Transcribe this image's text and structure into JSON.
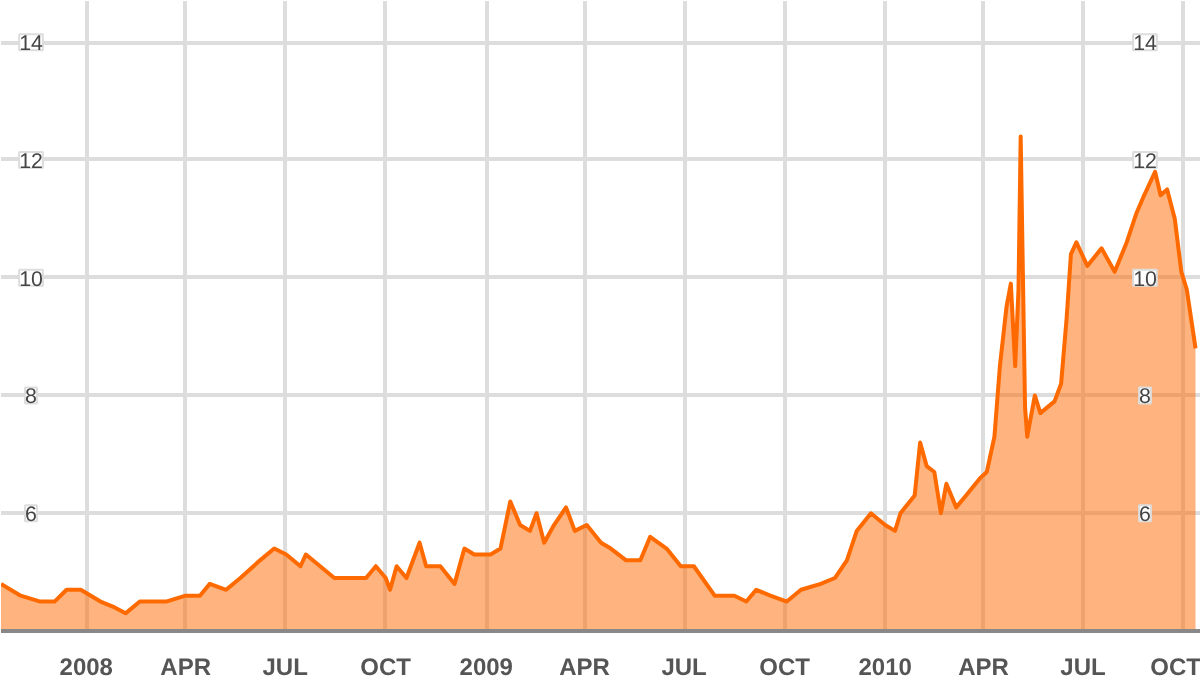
{
  "chart_data": {
    "type": "area",
    "grid": true,
    "xlim": [
      "2007-10-15",
      "2010-10-17"
    ],
    "ylim": [
      4,
      14.7
    ],
    "xticks": [
      {
        "value": "2008-01-01",
        "label": "2008"
      },
      {
        "value": "2008-04-01",
        "label": "APR"
      },
      {
        "value": "2008-07-01",
        "label": "JUL"
      },
      {
        "value": "2008-10-01",
        "label": "OCT"
      },
      {
        "value": "2009-01-01",
        "label": "2009"
      },
      {
        "value": "2009-04-01",
        "label": "APR"
      },
      {
        "value": "2009-07-01",
        "label": "JUL"
      },
      {
        "value": "2009-10-01",
        "label": "OCT"
      },
      {
        "value": "2010-01-01",
        "label": "2010"
      },
      {
        "value": "2010-04-01",
        "label": "APR"
      },
      {
        "value": "2010-07-01",
        "label": "JUL"
      },
      {
        "value": "2010-10-01",
        "label": "OCT"
      }
    ],
    "yticks": [
      6,
      8,
      10,
      12,
      14
    ],
    "y2lim": [
      4,
      14.7
    ],
    "y2ticks": [
      6,
      8,
      10,
      12,
      14
    ],
    "x": [
      "2007-10-15",
      "2007-11-02",
      "2007-11-20",
      "2007-12-03",
      "2007-12-14",
      "2007-12-27",
      "2008-01-14",
      "2008-01-27",
      "2008-02-06",
      "2008-02-19",
      "2008-03-03",
      "2008-03-14",
      "2008-04-01",
      "2008-04-14",
      "2008-04-23",
      "2008-05-08",
      "2008-05-21",
      "2008-06-08",
      "2008-06-21",
      "2008-07-02",
      "2008-07-15",
      "2008-07-20",
      "2008-08-02",
      "2008-08-15",
      "2008-09-02",
      "2008-09-13",
      "2008-09-22",
      "2008-10-01",
      "2008-10-05",
      "2008-10-11",
      "2008-10-20",
      "2008-11-01",
      "2008-11-07",
      "2008-11-20",
      "2008-12-03",
      "2008-12-12",
      "2008-12-21",
      "2009-01-05",
      "2009-01-14",
      "2009-01-23",
      "2009-02-01",
      "2009-02-10",
      "2009-02-16",
      "2009-02-23",
      "2009-03-04",
      "2009-03-15",
      "2009-03-23",
      "2009-04-03",
      "2009-04-16",
      "2009-04-25",
      "2009-05-09",
      "2009-05-22",
      "2009-05-31",
      "2009-06-15",
      "2009-06-28",
      "2009-07-10",
      "2009-07-29",
      "2009-08-16",
      "2009-08-27",
      "2009-09-05",
      "2009-09-18",
      "2009-10-03",
      "2009-10-16",
      "2009-11-03",
      "2009-11-16",
      "2009-11-27",
      "2009-12-06",
      "2009-12-19",
      "2010-01-01",
      "2010-01-10",
      "2010-01-15",
      "2010-01-28",
      "2010-02-02",
      "2010-02-08",
      "2010-02-15",
      "2010-02-21",
      "2010-02-26",
      "2010-03-07",
      "2010-03-16",
      "2010-03-29",
      "2010-04-04",
      "2010-04-11",
      "2010-04-16",
      "2010-04-22",
      "2010-04-26",
      "2010-04-30",
      "2010-05-03",
      "2010-05-05",
      "2010-05-09",
      "2010-05-11",
      "2010-05-18",
      "2010-05-23",
      "2010-06-05",
      "2010-06-11",
      "2010-06-16",
      "2010-06-20",
      "2010-06-25",
      "2010-07-05",
      "2010-07-18",
      "2010-07-30",
      "2010-08-10",
      "2010-08-19",
      "2010-08-26",
      "2010-09-05",
      "2010-09-10",
      "2010-09-16",
      "2010-09-23",
      "2010-09-29",
      "2010-10-04",
      "2010-10-12"
    ],
    "series": [
      {
        "color": "#ff6a00",
        "values": [
          4.8,
          4.6,
          4.5,
          4.5,
          4.7,
          4.7,
          4.5,
          4.4,
          4.3,
          4.5,
          4.5,
          4.5,
          4.6,
          4.6,
          4.8,
          4.7,
          4.9,
          5.2,
          5.4,
          5.3,
          5.1,
          5.3,
          5.1,
          4.9,
          4.9,
          4.9,
          5.1,
          4.9,
          4.7,
          5.1,
          4.9,
          5.5,
          5.1,
          5.1,
          4.8,
          5.4,
          5.3,
          5.3,
          5.4,
          6.2,
          5.8,
          5.7,
          6.0,
          5.5,
          5.8,
          6.1,
          5.7,
          5.8,
          5.5,
          5.4,
          5.2,
          5.2,
          5.6,
          5.4,
          5.1,
          5.1,
          4.6,
          4.6,
          4.5,
          4.7,
          4.6,
          4.5,
          4.7,
          4.8,
          4.9,
          5.2,
          5.7,
          6.0,
          5.8,
          5.7,
          6.0,
          6.3,
          7.2,
          6.8,
          6.7,
          6.0,
          6.5,
          6.1,
          6.3,
          6.6,
          6.7,
          7.3,
          8.5,
          9.5,
          9.9,
          8.5,
          9.8,
          12.4,
          7.8,
          7.3,
          8.0,
          7.7,
          7.9,
          8.2,
          9.3,
          10.4,
          10.6,
          10.2,
          10.5,
          10.1,
          10.6,
          11.1,
          11.4,
          11.8,
          11.4,
          11.5,
          11.0,
          10.1,
          9.8,
          8.8
        ]
      }
    ]
  }
}
